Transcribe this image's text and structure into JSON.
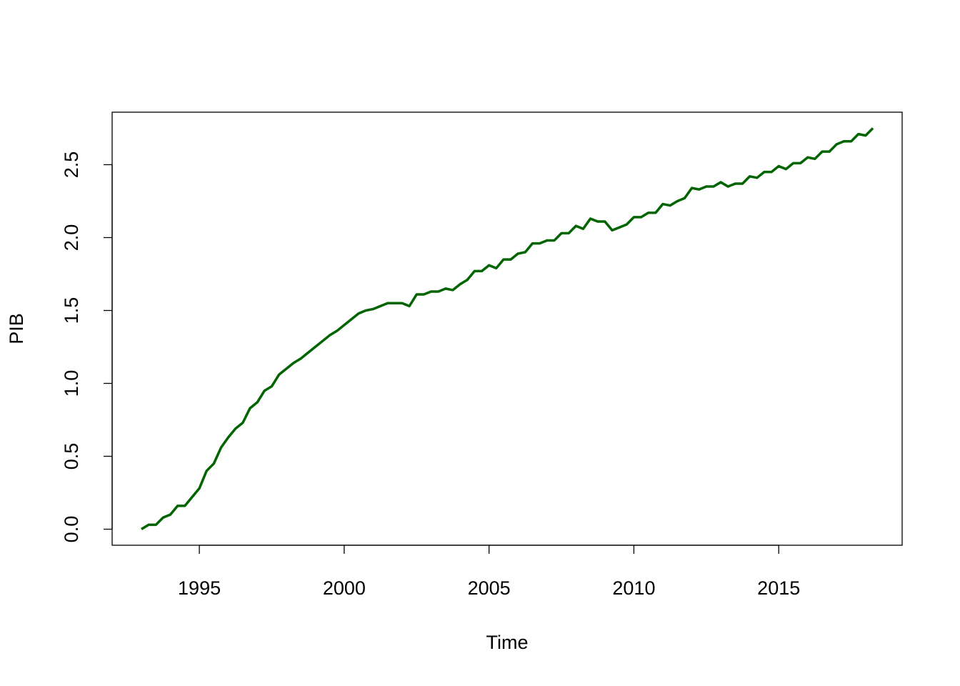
{
  "chart_data": {
    "type": "line",
    "xlabel": "Time",
    "ylabel": "PIB",
    "x": [
      1993,
      1993.25,
      1993.5,
      1993.75,
      1994,
      1994.25,
      1994.5,
      1994.75,
      1995,
      1995.25,
      1995.5,
      1995.75,
      1996,
      1996.25,
      1996.5,
      1996.75,
      1997,
      1997.25,
      1997.5,
      1997.75,
      1998,
      1998.25,
      1998.5,
      1998.75,
      1999,
      1999.25,
      1999.5,
      1999.75,
      2000,
      2000.25,
      2000.5,
      2000.75,
      2001,
      2001.25,
      2001.5,
      2001.75,
      2002,
      2002.25,
      2002.5,
      2002.75,
      2003,
      2003.25,
      2003.5,
      2003.75,
      2004,
      2004.25,
      2004.5,
      2004.75,
      2005,
      2005.25,
      2005.5,
      2005.75,
      2006,
      2006.25,
      2006.5,
      2006.75,
      2007,
      2007.25,
      2007.5,
      2007.75,
      2008,
      2008.25,
      2008.5,
      2008.75,
      2009,
      2009.25,
      2009.5,
      2009.75,
      2010,
      2010.25,
      2010.5,
      2010.75,
      2011,
      2011.25,
      2011.5,
      2011.75,
      2012,
      2012.25,
      2012.5,
      2012.75,
      2013,
      2013.25,
      2013.5,
      2013.75,
      2014,
      2014.25,
      2014.5,
      2014.75,
      2015,
      2015.25,
      2015.5,
      2015.75,
      2016,
      2016.25,
      2016.5,
      2016.75,
      2017,
      2017.25,
      2017.5,
      2017.75,
      2018,
      2018.25
    ],
    "series": [
      {
        "name": "PIB",
        "color": "#006400",
        "values": [
          0.0,
          0.03,
          0.03,
          0.08,
          0.1,
          0.16,
          0.16,
          0.22,
          0.28,
          0.4,
          0.45,
          0.56,
          0.63,
          0.69,
          0.73,
          0.83,
          0.87,
          0.95,
          0.98,
          1.06,
          1.1,
          1.14,
          1.17,
          1.21,
          1.25,
          1.29,
          1.33,
          1.36,
          1.4,
          1.44,
          1.48,
          1.5,
          1.51,
          1.53,
          1.55,
          1.55,
          1.55,
          1.53,
          1.61,
          1.61,
          1.63,
          1.63,
          1.65,
          1.64,
          1.68,
          1.71,
          1.77,
          1.77,
          1.81,
          1.79,
          1.85,
          1.85,
          1.89,
          1.9,
          1.96,
          1.96,
          1.98,
          1.98,
          2.03,
          2.03,
          2.08,
          2.06,
          2.13,
          2.11,
          2.11,
          2.05,
          2.07,
          2.09,
          2.14,
          2.14,
          2.17,
          2.17,
          2.23,
          2.22,
          2.25,
          2.27,
          2.34,
          2.33,
          2.35,
          2.35,
          2.38,
          2.35,
          2.37,
          2.37,
          2.42,
          2.41,
          2.45,
          2.45,
          2.49,
          2.47,
          2.51,
          2.51,
          2.55,
          2.54,
          2.59,
          2.59,
          2.64,
          2.66,
          2.66,
          2.71,
          2.7,
          2.75
        ]
      }
    ],
    "xlim": [
      1991.99,
      2019.26
    ],
    "xticks": [
      1995,
      2000,
      2005,
      2010,
      2015
    ],
    "ylim": [
      -0.11,
      2.86
    ],
    "yticks": [
      {
        "value": 0,
        "label": "0.0"
      },
      0.5,
      {
        "value": 1,
        "label": "1.0"
      },
      1.5,
      {
        "value": 2,
        "label": "2.0"
      },
      2.5
    ]
  }
}
